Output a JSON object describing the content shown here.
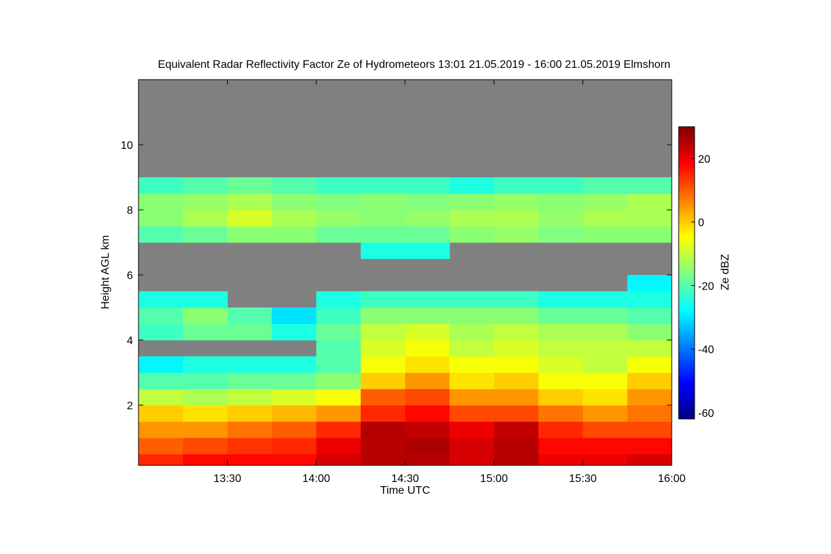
{
  "chart_data": {
    "type": "heatmap",
    "title": "Equivalent Radar Reflectivity Factor Ze of Hydrometeors   13:01 21.05.2019 - 16:00 21.05.2019 Elmshorn",
    "x_label": "Time UTC",
    "y_label": "Height AGL km",
    "colorbar_label": "Ze dBZ",
    "colormap": "jet",
    "missing_color": "#808080",
    "x": [
      0,
      15,
      30,
      45,
      60,
      75,
      90,
      105,
      120,
      135,
      150,
      165,
      180
    ],
    "y": [
      0,
      0.5,
      1,
      1.5,
      2,
      2.5,
      3,
      3.5,
      4,
      4.5,
      5,
      5.5,
      6,
      6.5,
      7,
      7.5,
      8,
      8.5,
      9
    ],
    "z": [
      [
        15,
        10,
        5,
        0,
        -10,
        -20,
        -28,
        null,
        -22,
        -20,
        -25,
        null,
        null,
        null,
        -20,
        -15,
        -15,
        -22
      ],
      [
        18,
        12,
        5,
        -2,
        -12,
        -20,
        -25,
        null,
        -18,
        -15,
        -25,
        null,
        null,
        null,
        -18,
        -12,
        -14,
        -20
      ],
      [
        18,
        14,
        8,
        0,
        -10,
        -18,
        -25,
        null,
        -18,
        -20,
        null,
        null,
        null,
        null,
        -15,
        -8,
        -12,
        -18
      ],
      [
        18,
        15,
        10,
        2,
        -8,
        -18,
        -25,
        null,
        -25,
        -30,
        null,
        null,
        null,
        null,
        -15,
        -12,
        -15,
        -20
      ],
      [
        22,
        20,
        15,
        5,
        -5,
        -15,
        -20,
        -20,
        -18,
        -22,
        -25,
        null,
        null,
        null,
        -18,
        -14,
        -16,
        -22
      ],
      [
        25,
        25,
        25,
        15,
        10,
        0,
        -5,
        -8,
        -10,
        -15,
        -22,
        null,
        null,
        -25,
        -18,
        -15,
        -15,
        -22
      ],
      [
        25,
        26,
        24,
        18,
        12,
        5,
        -2,
        -5,
        -8,
        -15,
        -22,
        null,
        null,
        -25,
        -18,
        -14,
        -16,
        -22
      ],
      [
        22,
        22,
        20,
        12,
        5,
        -2,
        -5,
        -10,
        -12,
        -15,
        -22,
        null,
        null,
        null,
        -15,
        -12,
        -15,
        -25
      ],
      [
        25,
        25,
        24,
        12,
        5,
        0,
        -5,
        -8,
        -10,
        -15,
        -22,
        null,
        null,
        null,
        -14,
        -12,
        -14,
        -22
      ],
      [
        20,
        18,
        15,
        8,
        0,
        -5,
        -8,
        -10,
        -12,
        -18,
        -25,
        null,
        null,
        null,
        -16,
        -14,
        -15,
        -22
      ],
      [
        20,
        18,
        12,
        5,
        -2,
        -5,
        -10,
        -10,
        -12,
        -18,
        -25,
        null,
        null,
        null,
        -15,
        -12,
        -14,
        -20
      ],
      [
        22,
        18,
        12,
        8,
        5,
        0,
        -5,
        -10,
        -15,
        -20,
        -25,
        -28,
        null,
        null,
        -15,
        -12,
        -12,
        -20
      ]
    ],
    "xlim": [
      0,
      180
    ],
    "ylim": [
      0.15,
      12
    ],
    "xticks": [
      {
        "value": 30,
        "label": "13:30"
      },
      {
        "value": 60,
        "label": "14:00"
      },
      {
        "value": 90,
        "label": "14:30"
      },
      {
        "value": 120,
        "label": "15:00"
      },
      {
        "value": 150,
        "label": "15:30"
      },
      {
        "value": 180,
        "label": "16:00"
      }
    ],
    "yticks": [
      2,
      4,
      6,
      8,
      10
    ],
    "zlim": [
      -62,
      30
    ],
    "zticks": [
      -60,
      -40,
      -20,
      0,
      20
    ]
  }
}
